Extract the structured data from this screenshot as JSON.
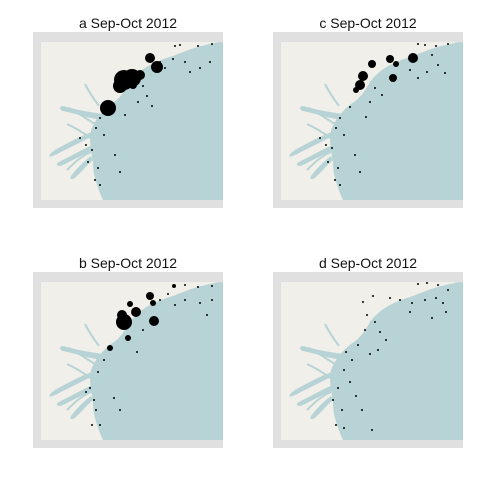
{
  "colors": {
    "frame": "#e0e0e0",
    "land": "#f1efe9",
    "water": "#b7d3d6",
    "marker": "#000000"
  },
  "panels": [
    {
      "id": "a",
      "title": "a Sep-Oct 2012",
      "points": [
        [
          175,
          46,
          1
        ],
        [
          180,
          45,
          1
        ],
        [
          198,
          46,
          1
        ],
        [
          212,
          44,
          1
        ],
        [
          150,
          58,
          5
        ],
        [
          157,
          67,
          6
        ],
        [
          140,
          75,
          5
        ],
        [
          132,
          78,
          9
        ],
        [
          124,
          80,
          10
        ],
        [
          133,
          85,
          4
        ],
        [
          120,
          86,
          7
        ],
        [
          160,
          62,
          1
        ],
        [
          165,
          68,
          1
        ],
        [
          173,
          59,
          1
        ],
        [
          185,
          62,
          1
        ],
        [
          190,
          72,
          1
        ],
        [
          200,
          68,
          1
        ],
        [
          210,
          62,
          1
        ],
        [
          218,
          60,
          1
        ],
        [
          143,
          86,
          1
        ],
        [
          147,
          96,
          1
        ],
        [
          152,
          106,
          1
        ],
        [
          138,
          102,
          1
        ],
        [
          108,
          108,
          8
        ],
        [
          125,
          115,
          1
        ],
        [
          100,
          118,
          1
        ],
        [
          96,
          128,
          1
        ],
        [
          104,
          135,
          1
        ],
        [
          92,
          150,
          1
        ],
        [
          86,
          145,
          1
        ],
        [
          80,
          138,
          1
        ],
        [
          88,
          162,
          1
        ],
        [
          98,
          168,
          1
        ],
        [
          95,
          180,
          1
        ],
        [
          100,
          185,
          1
        ],
        [
          115,
          155,
          1
        ],
        [
          120,
          172,
          1
        ]
      ]
    },
    {
      "id": "c",
      "title": "c Sep-Oct 2012",
      "points": [
        [
          418,
          44,
          1
        ],
        [
          425,
          45,
          1
        ],
        [
          436,
          46,
          1
        ],
        [
          448,
          44,
          1
        ],
        [
          372,
          64,
          4
        ],
        [
          390,
          59,
          4
        ],
        [
          396,
          64,
          3
        ],
        [
          413,
          58,
          5
        ],
        [
          393,
          78,
          4
        ],
        [
          363,
          76,
          5
        ],
        [
          360,
          85,
          5
        ],
        [
          356,
          90,
          3
        ],
        [
          410,
          70,
          1
        ],
        [
          418,
          78,
          1
        ],
        [
          427,
          72,
          1
        ],
        [
          438,
          65,
          1
        ],
        [
          445,
          73,
          1
        ],
        [
          432,
          55,
          1
        ],
        [
          375,
          88,
          1
        ],
        [
          382,
          95,
          1
        ],
        [
          370,
          102,
          1
        ],
        [
          366,
          117,
          1
        ],
        [
          350,
          107,
          1
        ],
        [
          340,
          118,
          1
        ],
        [
          336,
          128,
          1
        ],
        [
          344,
          135,
          1
        ],
        [
          332,
          148,
          1
        ],
        [
          326,
          145,
          1
        ],
        [
          320,
          138,
          1
        ],
        [
          328,
          162,
          1
        ],
        [
          338,
          168,
          1
        ],
        [
          335,
          180,
          1
        ],
        [
          340,
          185,
          1
        ],
        [
          355,
          155,
          1
        ],
        [
          360,
          172,
          1
        ]
      ]
    },
    {
      "id": "b",
      "title": "b Sep-Oct 2012",
      "points": [
        [
          174,
          286,
          2
        ],
        [
          185,
          285,
          1
        ],
        [
          198,
          287,
          1
        ],
        [
          212,
          286,
          1
        ],
        [
          150,
          296,
          4
        ],
        [
          153,
          303,
          3
        ],
        [
          130,
          304,
          3
        ],
        [
          136,
          312,
          5
        ],
        [
          122,
          315,
          5
        ],
        [
          124,
          322,
          8
        ],
        [
          154,
          321,
          5
        ],
        [
          128,
          338,
          3
        ],
        [
          110,
          348,
          3
        ],
        [
          160,
          300,
          1
        ],
        [
          168,
          294,
          1
        ],
        [
          175,
          305,
          1
        ],
        [
          185,
          300,
          1
        ],
        [
          200,
          303,
          1
        ],
        [
          212,
          300,
          1
        ],
        [
          207,
          315,
          1
        ],
        [
          143,
          330,
          1
        ],
        [
          137,
          352,
          1
        ],
        [
          104,
          360,
          1
        ],
        [
          98,
          372,
          1
        ],
        [
          90,
          388,
          1
        ],
        [
          86,
          392,
          1
        ],
        [
          94,
          400,
          1
        ],
        [
          96,
          410,
          1
        ],
        [
          100,
          425,
          1
        ],
        [
          92,
          425,
          1
        ],
        [
          114,
          398,
          1
        ],
        [
          120,
          410,
          1
        ]
      ]
    },
    {
      "id": "d",
      "title": "d Sep-Oct 2012",
      "points": [
        [
          418,
          284,
          1
        ],
        [
          427,
          283,
          1
        ],
        [
          438,
          285,
          1
        ],
        [
          448,
          290,
          1
        ],
        [
          373,
          296,
          1
        ],
        [
          390,
          298,
          1
        ],
        [
          400,
          300,
          1
        ],
        [
          412,
          303,
          1
        ],
        [
          425,
          300,
          1
        ],
        [
          436,
          298,
          1
        ],
        [
          443,
          303,
          1
        ],
        [
          446,
          312,
          1
        ],
        [
          432,
          318,
          1
        ],
        [
          410,
          312,
          1
        ],
        [
          363,
          302,
          1
        ],
        [
          367,
          315,
          1
        ],
        [
          375,
          322,
          1
        ],
        [
          380,
          332,
          1
        ],
        [
          386,
          340,
          1
        ],
        [
          378,
          350,
          1
        ],
        [
          370,
          354,
          1
        ],
        [
          365,
          330,
          1
        ],
        [
          358,
          345,
          1
        ],
        [
          346,
          352,
          1
        ],
        [
          352,
          360,
          1
        ],
        [
          344,
          370,
          1
        ],
        [
          350,
          382,
          1
        ],
        [
          338,
          388,
          1
        ],
        [
          333,
          400,
          1
        ],
        [
          342,
          410,
          1
        ],
        [
          336,
          425,
          1
        ],
        [
          344,
          428,
          1
        ],
        [
          356,
          396,
          1
        ],
        [
          362,
          410,
          1
        ],
        [
          372,
          430,
          1
        ]
      ]
    }
  ]
}
